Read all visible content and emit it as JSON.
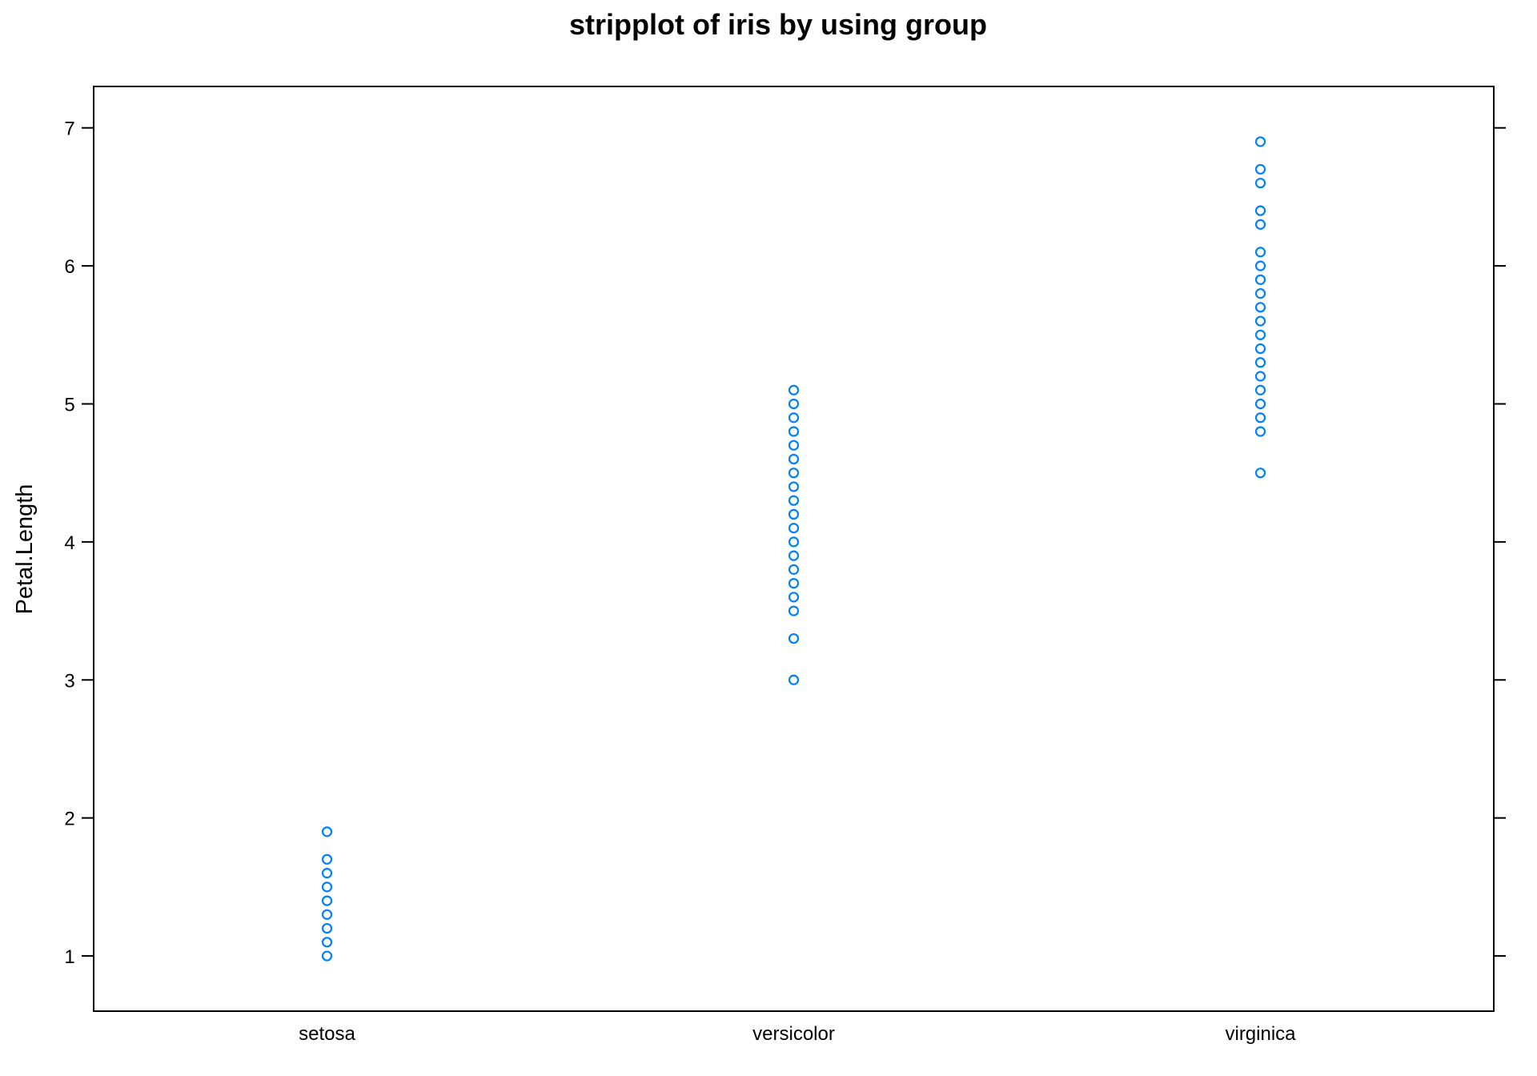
{
  "chart_data": {
    "type": "scatter",
    "title": "stripplot of iris by using group",
    "xlabel": "",
    "ylabel": "Petal.Length",
    "categories": [
      "setosa",
      "versicolor",
      "virginica"
    ],
    "ylim": [
      0.6,
      7.3
    ],
    "yticks": [
      1,
      2,
      3,
      4,
      5,
      6,
      7
    ],
    "grid": false,
    "legend": "none",
    "marker": "open-circle",
    "point_color": "#0080ff",
    "series": [
      {
        "category": "setosa",
        "values": [
          1.0,
          1.1,
          1.2,
          1.3,
          1.4,
          1.5,
          1.6,
          1.7,
          1.9
        ]
      },
      {
        "category": "versicolor",
        "values": [
          3.0,
          3.3,
          3.5,
          3.6,
          3.7,
          3.8,
          3.9,
          4.0,
          4.1,
          4.2,
          4.3,
          4.4,
          4.5,
          4.6,
          4.7,
          4.8,
          4.9,
          5.0,
          5.1
        ]
      },
      {
        "category": "virginica",
        "values": [
          4.5,
          4.8,
          4.9,
          5.0,
          5.1,
          5.2,
          5.3,
          5.4,
          5.5,
          5.6,
          5.7,
          5.8,
          5.9,
          6.0,
          6.1,
          6.3,
          6.4,
          6.6,
          6.7,
          6.9
        ]
      }
    ]
  }
}
